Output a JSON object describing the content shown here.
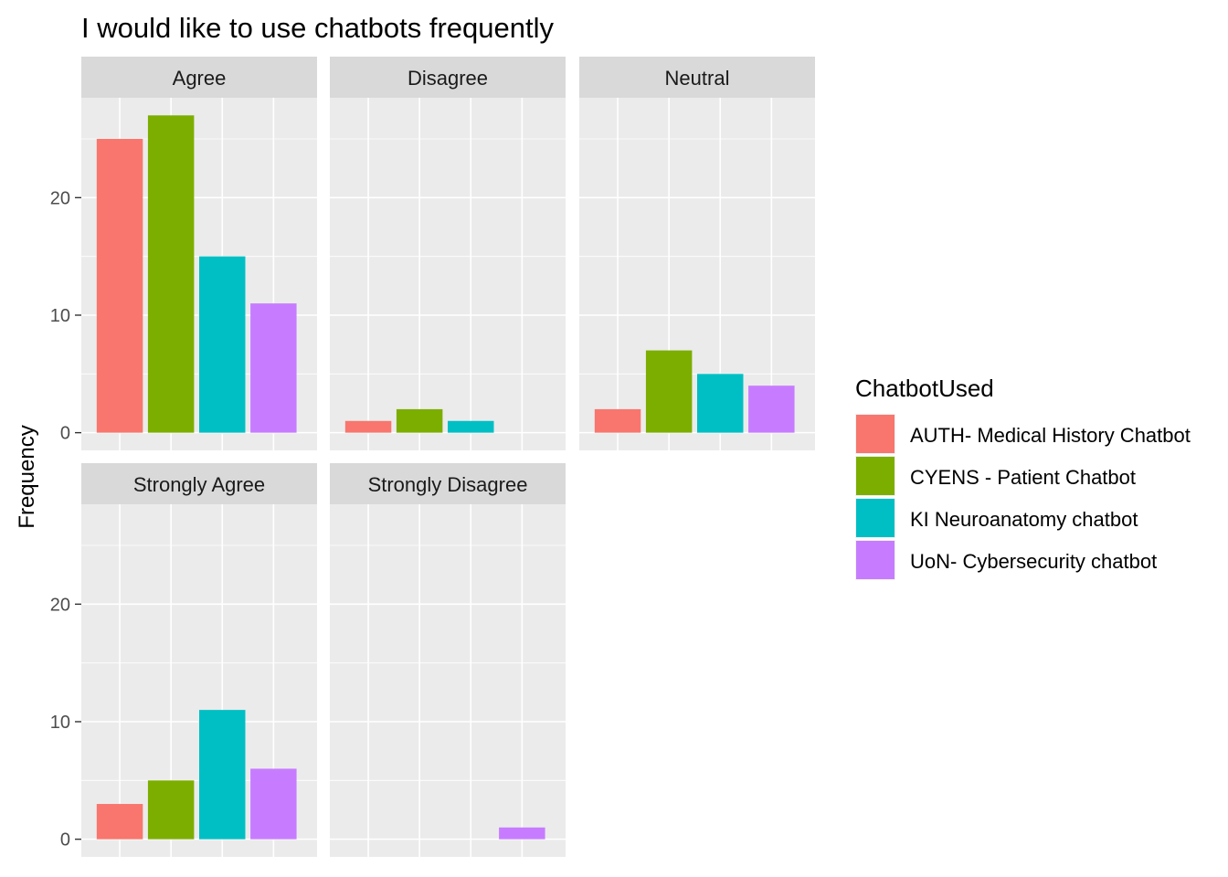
{
  "chart_data": {
    "type": "bar",
    "title": "I would like to use chatbots frequently",
    "xlabel": "",
    "ylabel": "Frequency",
    "ylim": [
      0,
      28.5
    ],
    "yticks": [
      0,
      10,
      20
    ],
    "grid": true,
    "legend_position": "right",
    "legend_title": "ChatbotUsed",
    "series": [
      {
        "name": "AUTH- Medical History Chatbot",
        "color": "#F8766D"
      },
      {
        "name": "CYENS - Patient Chatbot",
        "color": "#7CAE00"
      },
      {
        "name": "KI Neuroanatomy chatbot",
        "color": "#00BFC4"
      },
      {
        "name": "UoN- Cybersecurity chatbot",
        "color": "#C77CFF"
      }
    ],
    "facets": [
      {
        "label": "Agree",
        "values": [
          25,
          27,
          15,
          11
        ]
      },
      {
        "label": "Disagree",
        "values": [
          1,
          2,
          1,
          0
        ]
      },
      {
        "label": "Neutral",
        "values": [
          2,
          7,
          5,
          4
        ]
      },
      {
        "label": "Strongly Agree",
        "values": [
          3,
          5,
          11,
          6
        ]
      },
      {
        "label": "Strongly Disagree",
        "values": [
          0,
          0,
          0,
          1
        ]
      }
    ],
    "colors": {
      "panel_background": "#EBEBEB",
      "strip_background": "#D9D9D9",
      "grid_line": "#FFFFFF"
    }
  }
}
